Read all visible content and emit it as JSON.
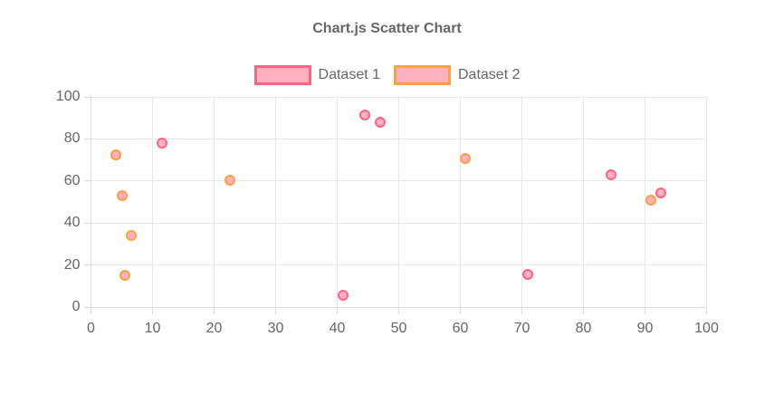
{
  "title": "Chart.js Scatter Chart",
  "colors": {
    "dataset1_border": "#FF6384",
    "dataset2_border": "#FF9F40",
    "point_fill": "#FFB1C2",
    "gridline": "#E9E9E9",
    "axis_border": "#DDDDDD",
    "text": "#666666",
    "background": "#FFFFFF"
  },
  "chart_data": {
    "type": "scatter",
    "title": "Chart.js Scatter Chart",
    "xlabel": "",
    "ylabel": "",
    "xlim": [
      0,
      100
    ],
    "ylim": [
      0,
      100
    ],
    "x_ticks": [
      0,
      10,
      20,
      30,
      40,
      50,
      60,
      70,
      80,
      90,
      100
    ],
    "y_ticks": [
      0,
      20,
      40,
      60,
      80,
      100
    ],
    "grid": true,
    "legend_position": "top",
    "series": [
      {
        "name": "Dataset 1",
        "border_color": "#FF6384",
        "fill_color": "#FFB1C2",
        "points": [
          {
            "x": 11.5,
            "y": 78
          },
          {
            "x": 41,
            "y": 5.5
          },
          {
            "x": 44.5,
            "y": 91.5
          },
          {
            "x": 47,
            "y": 88
          },
          {
            "x": 71,
            "y": 15.5
          },
          {
            "x": 84.5,
            "y": 63
          },
          {
            "x": 92.5,
            "y": 54.5
          }
        ]
      },
      {
        "name": "Dataset 2",
        "border_color": "#FF9F40",
        "fill_color": "#FFB1C2",
        "points": [
          {
            "x": 4,
            "y": 72.5
          },
          {
            "x": 5,
            "y": 53
          },
          {
            "x": 6.5,
            "y": 34
          },
          {
            "x": 5.5,
            "y": 15
          },
          {
            "x": 22.5,
            "y": 60.5
          },
          {
            "x": 60.8,
            "y": 70.5
          },
          {
            "x": 91,
            "y": 51
          }
        ]
      }
    ]
  }
}
